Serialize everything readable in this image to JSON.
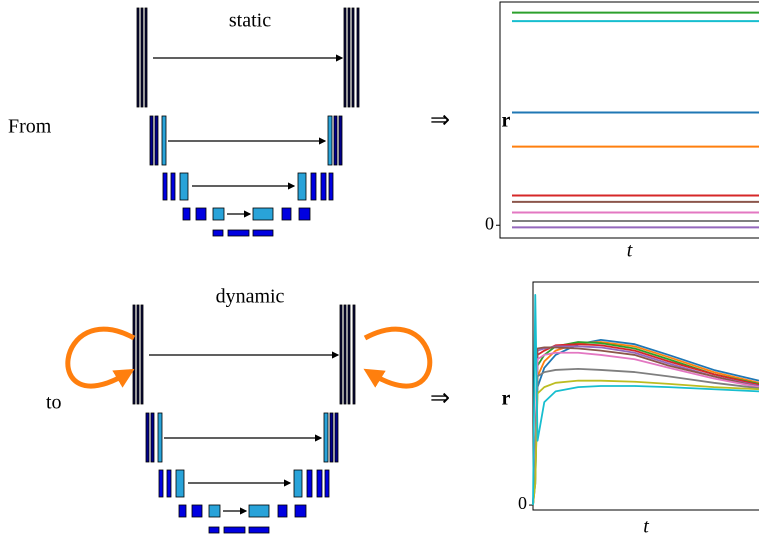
{
  "top": {
    "label": "static",
    "side_text": "From",
    "arrow": "⇒"
  },
  "bottom": {
    "label": "dynamic",
    "side_text": "to",
    "arrow": "⇒"
  },
  "charts": [
    {
      "type": "hline",
      "y_label": "r",
      "x_label": "t",
      "ylim": [
        -0.06,
        1.05
      ],
      "yticks": [
        0
      ],
      "series": [
        {
          "color": "#2ca02c",
          "value": 1.0
        },
        {
          "color": "#17becf",
          "value": 0.96
        },
        {
          "color": "#1f77b4",
          "value": 0.53
        },
        {
          "color": "#ff7f0e",
          "value": 0.37
        },
        {
          "color": "#d62728",
          "value": 0.14
        },
        {
          "color": "#8c564b",
          "value": 0.11
        },
        {
          "color": "#bcbd22",
          "value": 0.06
        },
        {
          "color": "#e377c2",
          "value": 0.06
        },
        {
          "color": "#7f7f7f",
          "value": 0.02
        },
        {
          "color": "#9467bd",
          "value": -0.01
        }
      ]
    },
    {
      "type": "line",
      "y_label": "r",
      "x_label": "t",
      "ylim": [
        -0.023,
        1.04
      ],
      "xlim": [
        0,
        1
      ],
      "yticks": [
        0
      ],
      "x": [
        0,
        0.01,
        0.02,
        0.05,
        0.1,
        0.2,
        0.3,
        0.45,
        0.6,
        0.8,
        1.0
      ],
      "series": [
        {
          "color": "#1f77b4",
          "values": [
            0,
            0.1,
            0.55,
            0.64,
            0.7,
            0.75,
            0.77,
            0.75,
            0.7,
            0.63,
            0.58
          ]
        },
        {
          "color": "#ff7f0e",
          "values": [
            0,
            0.12,
            0.6,
            0.67,
            0.72,
            0.755,
            0.76,
            0.74,
            0.69,
            0.62,
            0.57
          ]
        },
        {
          "color": "#2ca02c",
          "values": [
            0,
            0.15,
            0.65,
            0.7,
            0.74,
            0.76,
            0.755,
            0.73,
            0.68,
            0.61,
            0.565
          ]
        },
        {
          "color": "#d62728",
          "values": [
            0,
            0.18,
            0.7,
            0.72,
            0.745,
            0.75,
            0.745,
            0.72,
            0.67,
            0.61,
            0.56
          ]
        },
        {
          "color": "#9467bd",
          "values": [
            0,
            0.2,
            0.72,
            0.73,
            0.74,
            0.74,
            0.735,
            0.71,
            0.66,
            0.6,
            0.555
          ]
        },
        {
          "color": "#8c564b",
          "values": [
            0,
            0.22,
            0.73,
            0.735,
            0.735,
            0.73,
            0.72,
            0.7,
            0.65,
            0.6,
            0.55
          ]
        },
        {
          "color": "#e377c2",
          "values": [
            0,
            0.2,
            0.68,
            0.7,
            0.71,
            0.71,
            0.7,
            0.68,
            0.64,
            0.59,
            0.55
          ]
        },
        {
          "color": "#7f7f7f",
          "values": [
            0,
            0.15,
            0.6,
            0.62,
            0.63,
            0.635,
            0.63,
            0.62,
            0.6,
            0.57,
            0.545
          ]
        },
        {
          "color": "#bcbd22",
          "values": [
            0,
            0.1,
            0.52,
            0.55,
            0.57,
            0.58,
            0.58,
            0.575,
            0.565,
            0.55,
            0.54
          ]
        },
        {
          "color": "#17becf",
          "values": [
            0,
            0.98,
            0.3,
            0.48,
            0.53,
            0.55,
            0.555,
            0.555,
            0.55,
            0.54,
            0.53
          ]
        }
      ]
    }
  ]
}
